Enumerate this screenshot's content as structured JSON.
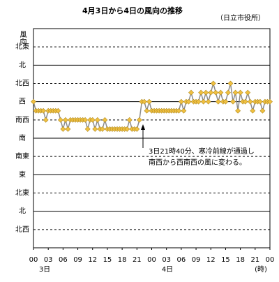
{
  "chart_data": {
    "type": "line",
    "title": "4月3日から4日の風向の推移",
    "subtitle": "（日立市役所）",
    "y_label": "風向",
    "x_unit": "(時)",
    "date_labels": [
      "3日",
      "4日"
    ],
    "annotation": [
      "3日21時40分、寒冷前線が通過し",
      "南西から西南西の風に変わる。"
    ],
    "xlim": [
      0,
      48
    ],
    "xticks": [
      {
        "value": 0,
        "label": "00"
      },
      {
        "value": 3,
        "label": "03"
      },
      {
        "value": 6,
        "label": "06"
      },
      {
        "value": 9,
        "label": "09"
      },
      12,
      15,
      18,
      21,
      {
        "value": 24,
        "label": "00"
      },
      {
        "value": 27,
        "label": "03"
      },
      {
        "value": 30,
        "label": "06"
      },
      {
        "value": 33,
        "label": "09"
      },
      {
        "value": 36,
        "label": "12"
      },
      {
        "value": 39,
        "label": "15"
      },
      {
        "value": 42,
        "label": "18"
      },
      {
        "value": 45,
        "label": "21"
      },
      {
        "value": 48,
        "label": "00"
      }
    ],
    "ylim": [
      0,
      12
    ],
    "yticks": [
      {
        "value": 11,
        "label": "北東"
      },
      {
        "value": 10,
        "label": "北"
      },
      {
        "value": 9,
        "label": "北西"
      },
      {
        "value": 8,
        "label": "西"
      },
      {
        "value": 7,
        "label": "南西"
      },
      {
        "value": 6,
        "label": "南"
      },
      {
        "value": 5,
        "label": "南東"
      },
      {
        "value": 4,
        "label": "東"
      },
      {
        "value": 3,
        "label": "北東"
      },
      {
        "value": 2,
        "label": "北"
      },
      {
        "value": 1,
        "label": "北西"
      }
    ],
    "x": [
      0,
      0.5,
      1,
      1.5,
      2,
      2.5,
      3,
      3.5,
      4,
      4.5,
      5,
      5.5,
      6,
      6.5,
      7,
      7.5,
      8,
      8.5,
      9,
      9.5,
      10,
      10.5,
      11,
      11.5,
      12,
      12.5,
      13,
      13.5,
      14,
      14.5,
      15,
      15.5,
      16,
      16.5,
      17,
      17.5,
      18,
      18.5,
      19,
      19.5,
      20,
      20.5,
      21,
      21.5,
      22,
      22.5,
      23,
      23.5,
      24,
      24.5,
      25,
      25.5,
      26,
      26.5,
      27,
      27.5,
      28,
      28.5,
      29,
      29.5,
      30,
      30.5,
      31,
      31.5,
      32,
      32.5,
      33,
      33.5,
      34,
      34.5,
      35,
      35.5,
      36,
      36.5,
      37,
      37.5,
      38,
      38.5,
      39,
      39.5,
      40,
      40.5,
      41,
      41.5,
      42,
      42.5,
      43,
      43.5,
      44,
      44.5,
      45,
      45.5,
      46,
      46.5,
      47,
      47.5,
      48
    ],
    "series": [
      {
        "color": "#f0c040",
        "line_color": "#8c8c8c",
        "values": [
          8,
          7.5,
          7.5,
          7.5,
          7.5,
          7,
          7.5,
          7.5,
          7.5,
          7.5,
          7.5,
          7,
          6.5,
          7,
          6.5,
          7,
          7,
          7,
          7,
          7,
          7,
          7,
          6.5,
          7,
          7,
          6.5,
          7,
          6.5,
          6.5,
          7,
          6.5,
          6.5,
          6.5,
          6.5,
          6.5,
          6.5,
          6.5,
          6.5,
          6.5,
          7,
          6.5,
          6.5,
          6.5,
          7,
          8,
          8,
          7.5,
          8,
          7.5,
          7.5,
          7.5,
          7.5,
          7.5,
          7.5,
          7.5,
          7.5,
          7.5,
          7.5,
          7.5,
          7.5,
          8,
          7.5,
          8,
          8,
          8.5,
          8,
          8,
          8,
          8.5,
          8,
          8.5,
          8,
          8.5,
          9,
          8.5,
          8,
          8.5,
          8,
          8,
          8.5,
          9,
          8,
          8.5,
          7.5,
          8.5,
          8,
          8,
          8.5,
          8,
          7.5,
          8,
          8,
          8,
          7.5,
          8,
          8,
          8
        ]
      }
    ]
  }
}
